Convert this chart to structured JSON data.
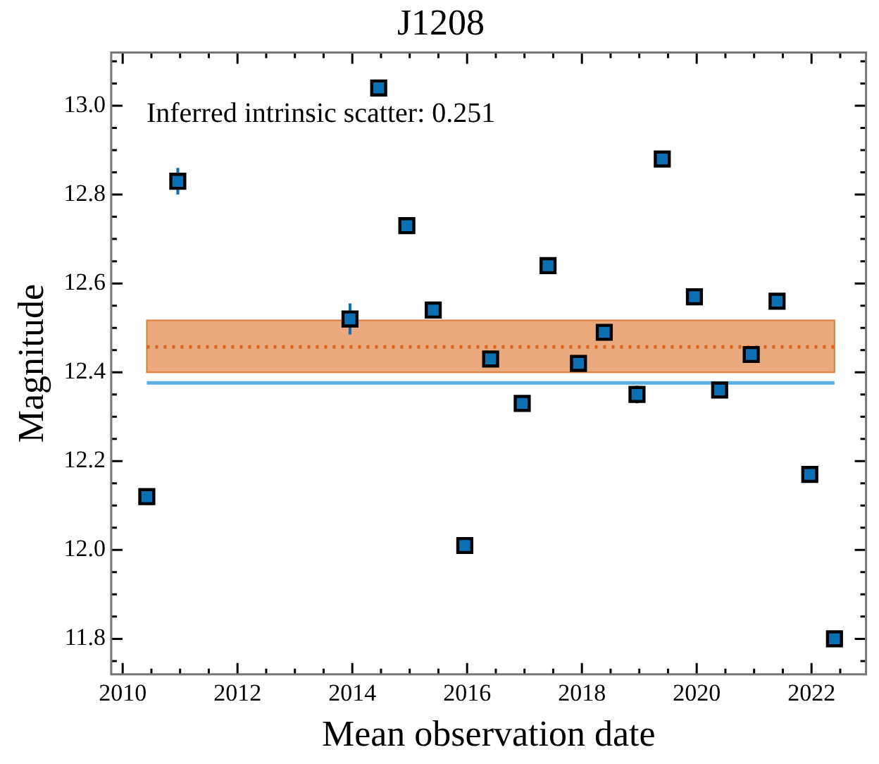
{
  "chart_data": {
    "type": "scatter",
    "title": "J1208",
    "xlabel": "Mean observation date",
    "ylabel": "Magnitude",
    "annotations": [
      "Inferred intrinsic scatter: 0.251"
    ],
    "x": [
      2010.42,
      2010.96,
      2013.96,
      2014.46,
      2014.95,
      2015.41,
      2015.96,
      2016.41,
      2016.96,
      2017.41,
      2017.94,
      2018.39,
      2018.96,
      2019.4,
      2019.96,
      2020.4,
      2020.95,
      2021.4,
      2021.97,
      2022.4
    ],
    "series": [
      {
        "color": "#0b6fb3",
        "values": [
          12.12,
          12.83,
          12.52,
          13.04,
          12.73,
          12.54,
          12.01,
          12.43,
          12.33,
          12.64,
          12.42,
          12.49,
          12.35,
          12.88,
          12.57,
          12.36,
          12.44,
          12.56,
          12.17,
          11.8
        ],
        "errors": [
          null,
          0.03,
          0.035,
          null,
          null,
          null,
          null,
          null,
          null,
          null,
          null,
          null,
          0.02,
          null,
          null,
          null,
          null,
          null,
          null,
          null
        ]
      }
    ],
    "marker": "square",
    "grid": false,
    "legend": false,
    "xlim": [
      2009.8,
      2022.95
    ],
    "ylim": [
      11.72,
      13.12
    ],
    "xticks": [
      2010,
      {
        "value": 2010.5,
        "label": null
      },
      {
        "value": 2011,
        "label": null
      },
      {
        "value": 2011.5,
        "label": null
      },
      2012,
      {
        "value": 2012.5,
        "label": null
      },
      {
        "value": 2013,
        "label": null
      },
      {
        "value": 2013.5,
        "label": null
      },
      2014,
      {
        "value": 2014.5,
        "label": null
      },
      {
        "value": 2015,
        "label": null
      },
      {
        "value": 2015.5,
        "label": null
      },
      2016,
      {
        "value": 2016.5,
        "label": null
      },
      {
        "value": 2017,
        "label": null
      },
      {
        "value": 2017.5,
        "label": null
      },
      2018,
      {
        "value": 2018.5,
        "label": null
      },
      {
        "value": 2019,
        "label": null
      },
      {
        "value": 2019.5,
        "label": null
      },
      2020,
      {
        "value": 2020.5,
        "label": null
      },
      {
        "value": 2021,
        "label": null
      },
      {
        "value": 2021.5,
        "label": null
      },
      2022,
      {
        "value": 2022.5,
        "label": null
      }
    ],
    "yticks": [
      {
        "value": 11.75,
        "label": null
      },
      {
        "value": 11.8,
        "label": "11.8"
      },
      {
        "value": 11.85,
        "label": null
      },
      {
        "value": 11.9,
        "label": null
      },
      {
        "value": 11.95,
        "label": null
      },
      {
        "value": 12.0,
        "label": "12.0"
      },
      {
        "value": 12.05,
        "label": null
      },
      {
        "value": 12.1,
        "label": null
      },
      {
        "value": 12.15,
        "label": null
      },
      {
        "value": 12.2,
        "label": "12.2"
      },
      {
        "value": 12.25,
        "label": null
      },
      {
        "value": 12.3,
        "label": null
      },
      {
        "value": 12.35,
        "label": null
      },
      {
        "value": 12.4,
        "label": "12.4"
      },
      {
        "value": 12.45,
        "label": null
      },
      {
        "value": 12.5,
        "label": null
      },
      {
        "value": 12.55,
        "label": null
      },
      {
        "value": 12.6,
        "label": "12.6"
      },
      {
        "value": 12.65,
        "label": null
      },
      {
        "value": 12.7,
        "label": null
      },
      {
        "value": 12.75,
        "label": null
      },
      {
        "value": 12.8,
        "label": "12.8"
      },
      {
        "value": 12.85,
        "label": null
      },
      {
        "value": 12.9,
        "label": null
      },
      {
        "value": 12.95,
        "label": null
      },
      {
        "value": 13.0,
        "label": "13.0"
      },
      {
        "value": 13.05,
        "label": null
      },
      {
        "value": 13.1,
        "label": null
      }
    ],
    "bands": [
      {
        "axis": "y",
        "from": 12.4,
        "to": 12.517,
        "color": "#e07b39"
      }
    ],
    "ref_lines": [
      {
        "axis": "y",
        "value": 12.457,
        "color": "#d9661f",
        "line_style": "dotted"
      },
      {
        "axis": "y",
        "value": 12.376,
        "color": "#5aaee0",
        "line_style": "solid"
      }
    ]
  }
}
